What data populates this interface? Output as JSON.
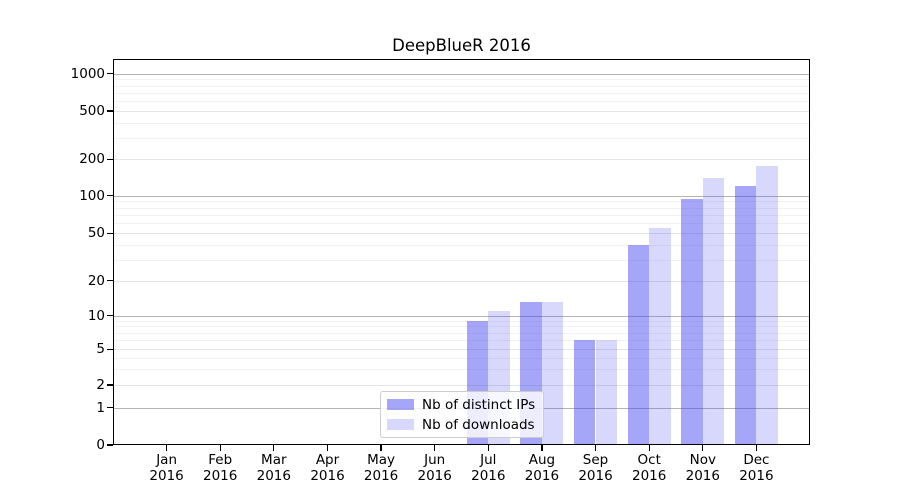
{
  "chart_data": {
    "type": "bar",
    "title": "DeepBlueR 2016",
    "months": [
      "Jan",
      "Feb",
      "Mar",
      "Apr",
      "May",
      "Jun",
      "Jul",
      "Aug",
      "Sep",
      "Oct",
      "Nov",
      "Dec"
    ],
    "year": "2016",
    "series": [
      {
        "name": "Nb of distinct IPs",
        "color": "rgba(70,70,240,0.48)",
        "color_hex_on_white": "#a6a6f8",
        "values": [
          0,
          0,
          0,
          0,
          0,
          0,
          9,
          13,
          6,
          40,
          95,
          120
        ]
      },
      {
        "name": "Nb of downloads",
        "color": "rgba(70,70,240,0.21)",
        "color_hex_on_white": "#d9d9fb",
        "values": [
          0,
          0,
          0,
          0,
          0,
          0,
          11,
          13,
          6,
          55,
          140,
          175
        ]
      }
    ],
    "y_ticks": [
      0,
      1,
      2,
      5,
      10,
      20,
      50,
      100,
      200,
      500,
      1000
    ],
    "y_scale": "symlog",
    "ylim": [
      0,
      1300
    ],
    "xlabel": "",
    "ylabel": "",
    "grid": "horizontal major, labeled-sub and log-minor lines",
    "legend_position": "lower center, inside axes",
    "grid_major_color": "#b4b4b4",
    "grid_mid_color": "#e4e4e4",
    "grid_minor_color": "#f2f2f2"
  }
}
